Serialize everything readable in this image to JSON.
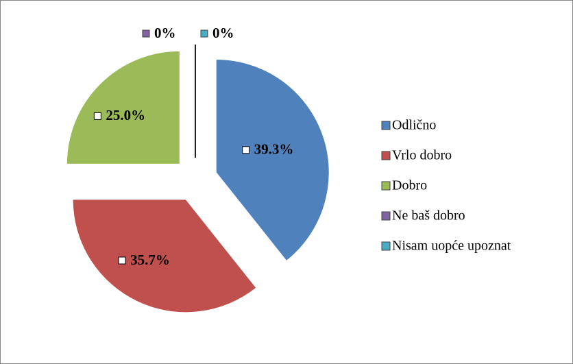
{
  "chart_data": {
    "type": "pie",
    "categories": [
      "Odlično",
      "Vrlo dobro",
      "Dobro",
      "Ne baš dobro",
      "Nisam uopće upoznat"
    ],
    "values": [
      39.3,
      35.7,
      25.0,
      0,
      0
    ],
    "value_labels": [
      "39.3%",
      "35.7%",
      "25.0%",
      "0%",
      "0%"
    ],
    "colors": [
      "#4f81bd",
      "#c0504d",
      "#9bbb59",
      "#8064a2",
      "#4bacc6"
    ],
    "legend": "right"
  }
}
